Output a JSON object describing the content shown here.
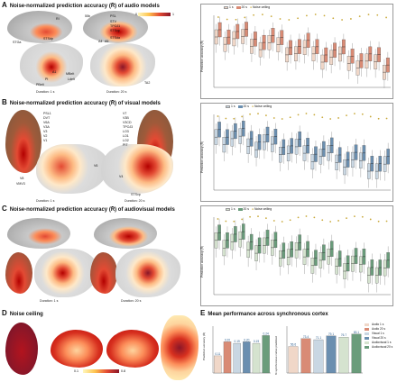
{
  "panelA": {
    "letter": "A",
    "title": "Noise-normalized prediction accuracy (R̄) of audio models",
    "duration_left": "Duration: 1 s",
    "duration_right": "Duration: 20 s",
    "colorbar_left": "0",
    "colorbar_right": "1",
    "roi_labels": [
      "RI",
      "STGa",
      "STSdp",
      "A1",
      "PI",
      "A4",
      "A5",
      "PBelt",
      "Ldelt",
      "MBelt",
      "55b",
      "PSL",
      "STV",
      "TPOJ1",
      "STSvp",
      "STSda",
      "TA2"
    ],
    "legend": [
      "1 s",
      "20 s",
      "Noise ceiling"
    ],
    "ylabel": "Prediction accuracy (R̄)"
  },
  "panelB": {
    "letter": "B",
    "title": "Noise-normalized prediction accuracy (R̄) of visual models",
    "duration_left": "Duration: 1 s",
    "duration_right": "Duration: 20 s",
    "roi_labels": [
      "PSL1",
      "DVT",
      "V6A",
      "V3A",
      "V3",
      "V2",
      "V1",
      "V7",
      "V3B",
      "V3CD",
      "TPOJ3",
      "LO3",
      "LO1",
      "LO2",
      "PIT",
      "V8",
      "VMV3",
      "V4",
      "V6",
      "STSvp"
    ],
    "legend": [
      "1 s",
      "20 s",
      "Noise ceiling"
    ],
    "ylabel": "Prediction accuracy (R̄)"
  },
  "panelC": {
    "letter": "C",
    "title": "Noise-normalized prediction accuracy (R̄) of audiovisual models",
    "duration_left": "Duration: 1 s",
    "duration_right": "Duration: 20 s",
    "legend": [
      "1 s",
      "20 s",
      "Noise ceiling"
    ],
    "ylabel": "Prediction accuracy (R̄)"
  },
  "panelD": {
    "letter": "D",
    "title": "Noise ceiling",
    "colorbar_min": "0.1",
    "colorbar_max": "0.8"
  },
  "panelE": {
    "letter": "E",
    "title": "Mean performance across synchronous cortex",
    "left_ylabel": "Prediction accuracy (R̄)",
    "right_ylabel": "% synchronous cortex predicted",
    "legend": [
      "Audio 1 s",
      "Audio 20 s",
      "Visual 1 s",
      "Visual 20 s",
      "Audiovisual 1 s",
      "Audiovisual 20 s"
    ]
  },
  "chart_data": [
    {
      "type": "bar",
      "title": "",
      "categories": [
        "Audio 1 s",
        "Audio 20 s",
        "Visual 1 s",
        "Visual 20 s",
        "Audiovisual 1 s",
        "Audiovisual 20 s"
      ],
      "values": [
        0.11,
        0.2,
        0.19,
        0.2,
        0.19,
        0.24
      ],
      "labels": [
        "0.11",
        "0.20",
        "0.19",
        "0.20",
        "0.19",
        "0.24"
      ],
      "ylabel": "Prediction accuracy (R̄)",
      "ylim": [
        0,
        0.3
      ],
      "colors": [
        "#f0d7c8",
        "#d98b75",
        "#c9d7e3",
        "#6b8fb0",
        "#d5e3cf",
        "#6a9c7b"
      ]
    },
    {
      "type": "bar",
      "title": "",
      "categories": [
        "Audio 1 s",
        "Audio 20 s",
        "Visual 1 s",
        "Visual 20 s",
        "Audiovisual 1 s",
        "Audiovisual 20 s"
      ],
      "values": [
        56.6,
        73.4,
        71.1,
        79.1,
        76.7,
        83.1
      ],
      "labels": [
        "56.6",
        "73.4",
        "71.1",
        "79.1",
        "76.7",
        "83.1"
      ],
      "ylabel": "% synchronous cortex predicted",
      "ylim": [
        0,
        100
      ],
      "colors": [
        "#f0d7c8",
        "#d98b75",
        "#c9d7e3",
        "#6b8fb0",
        "#d5e3cf",
        "#6a9c7b"
      ]
    }
  ],
  "colors": {
    "audio_light": "#f0d7c8",
    "audio_dark": "#d98b75",
    "visual_light": "#c9d7e3",
    "visual_dark": "#6b8fb0",
    "av_light": "#d5e3cf",
    "av_dark": "#6a9c7b",
    "noise_ceiling": "#c9a93a",
    "heat_low": "#f7e06b",
    "heat_high": "#8a1628"
  }
}
